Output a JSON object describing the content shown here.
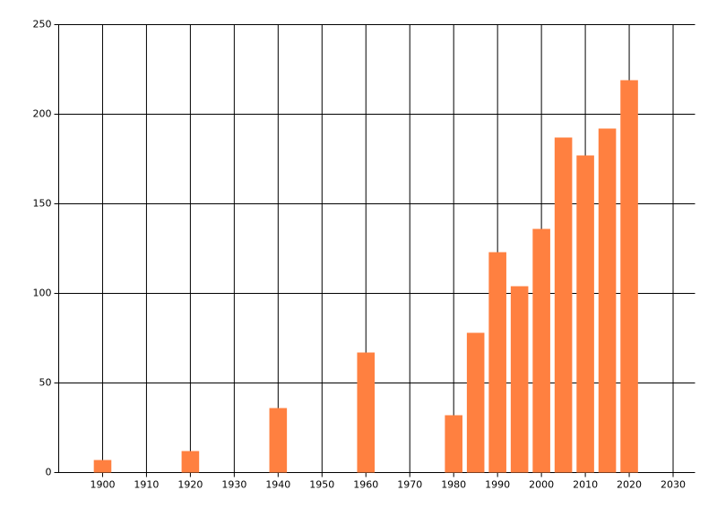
{
  "chart_data": {
    "type": "bar",
    "x": [
      1900,
      1920,
      1940,
      1960,
      1980,
      1985,
      1990,
      1995,
      2000,
      2005,
      2010,
      2015,
      2020
    ],
    "values": [
      7,
      12,
      36,
      67,
      32,
      78,
      123,
      104,
      136,
      187,
      177,
      192,
      219
    ],
    "color": "#ff8040",
    "xlim": [
      1890,
      2035
    ],
    "xticks": [
      1900,
      1910,
      1920,
      1930,
      1940,
      1950,
      1960,
      1970,
      1980,
      1990,
      2000,
      2010,
      2020,
      2030
    ],
    "ylim": [
      0,
      250
    ],
    "yticks": [
      0,
      50,
      100,
      150,
      200,
      250
    ],
    "grid": true
  }
}
